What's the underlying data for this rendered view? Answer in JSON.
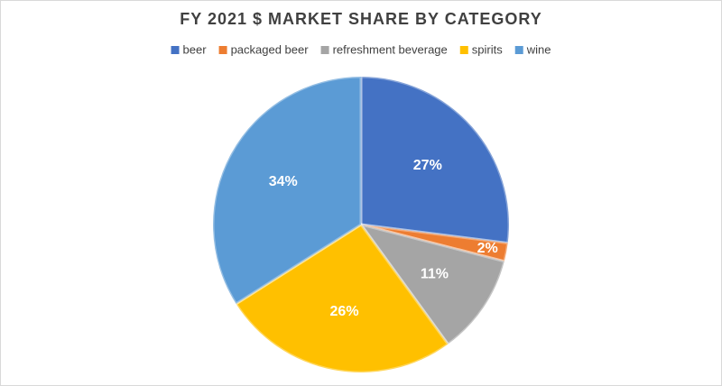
{
  "chart_data": {
    "type": "pie",
    "title": "FY 2021 $ MARKET SHARE BY CATEGORY",
    "categories": [
      "beer",
      "packaged beer",
      "refreshment beverage",
      "spirits",
      "wine"
    ],
    "values": [
      27,
      2,
      11,
      26,
      34
    ],
    "value_labels": [
      "27%",
      "2%",
      "11%",
      "26%",
      "34%"
    ],
    "colors": [
      "#4472c4",
      "#ed7d31",
      "#a5a5a5",
      "#ffc000",
      "#5b9bd5"
    ],
    "legend": "top"
  }
}
